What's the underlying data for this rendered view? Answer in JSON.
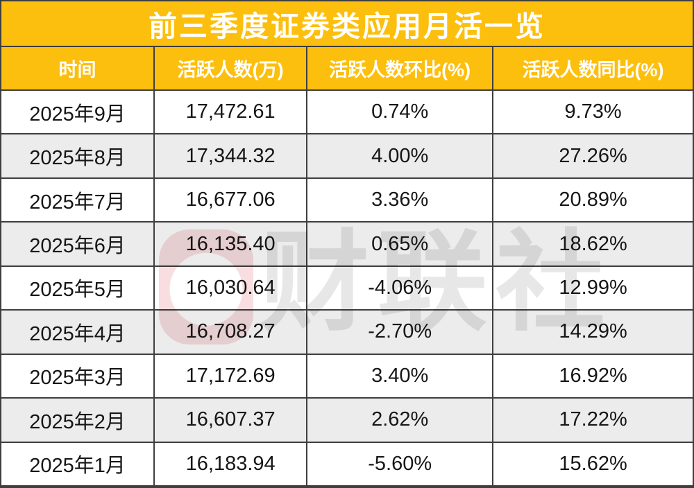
{
  "chart_data": {
    "type": "table",
    "title": "前三季度证券类应用月活一览",
    "columns": [
      "时间",
      "活跃人数(万)",
      "活跃人数环比(%)",
      "活跃人数同比(%)"
    ],
    "rows": [
      [
        "2025年9月",
        "17,472.61",
        "0.74%",
        "9.73%"
      ],
      [
        "2025年8月",
        "17,344.32",
        "4.00%",
        "27.26%"
      ],
      [
        "2025年7月",
        "16,677.06",
        "3.36%",
        "20.89%"
      ],
      [
        "2025年6月",
        "16,135.40",
        "0.65%",
        "18.62%"
      ],
      [
        "2025年5月",
        "16,030.64",
        "-4.06%",
        "12.99%"
      ],
      [
        "2025年4月",
        "16,708.27",
        "-2.70%",
        "14.29%"
      ],
      [
        "2025年3月",
        "17,172.69",
        "3.40%",
        "16.92%"
      ],
      [
        "2025年2月",
        "16,607.37",
        "2.62%",
        "17.22%"
      ],
      [
        "2025年1月",
        "16,183.94",
        "-5.60%",
        "15.62%"
      ]
    ]
  },
  "watermark": {
    "logo": "cailian-c-logo",
    "text": "财联社"
  },
  "colors": {
    "gold": "#FDBF0D",
    "border": "#3E3E3E",
    "row_alt": "#ECECEC",
    "title_text": "#FFFFFF",
    "header_text": "#FFFFFF",
    "body_text": "#161616",
    "watermark_pink": "rgba(214,62,70,0.17)",
    "watermark_gray": "rgba(110,110,110,0.17)"
  }
}
